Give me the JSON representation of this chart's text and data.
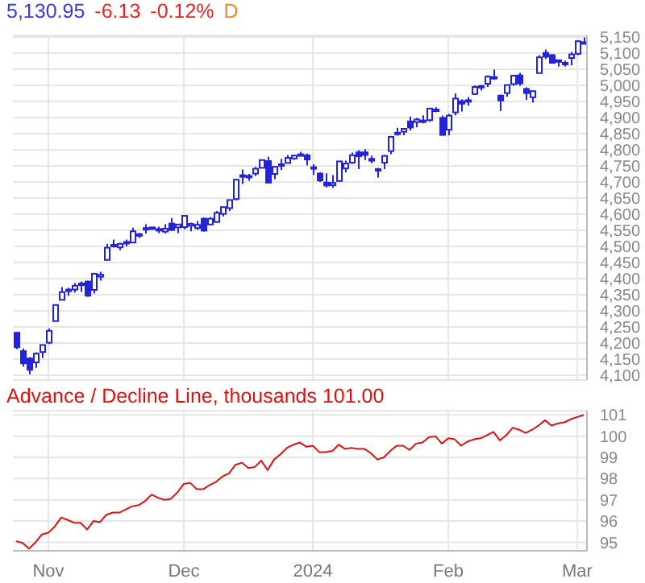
{
  "chart_data": [
    {
      "type": "candlestick",
      "title": "5,130.95 -6.13 -0.12% D",
      "color": "#2323dc",
      "categories": [
        null,
        null,
        null,
        null,
        null,
        null,
        null,
        null,
        null,
        null,
        null,
        null,
        null,
        null,
        null,
        null,
        null,
        null,
        null,
        null,
        null,
        null,
        null,
        null,
        null,
        null,
        null,
        null,
        null,
        null,
        null,
        null,
        null,
        null,
        null,
        null,
        null,
        null,
        null,
        null,
        null,
        null,
        null,
        null,
        null,
        null,
        null,
        null,
        null,
        null,
        null,
        null,
        null,
        null,
        null,
        null,
        null,
        null,
        null,
        null,
        null,
        null,
        null,
        null,
        null,
        null,
        null,
        null,
        null,
        null,
        null,
        null,
        null,
        null,
        null,
        null,
        null,
        null,
        null,
        null,
        null,
        null,
        null,
        null,
        null,
        null,
        null,
        null,
        null
      ],
      "ohlc": [
        [
          4232,
          4233,
          4181,
          4187
        ],
        [
          4175,
          4183,
          4127,
          4137
        ],
        [
          4152,
          4156,
          4103,
          4117
        ],
        [
          4140,
          4171,
          4123,
          4167
        ],
        [
          4172,
          4195,
          4154,
          4194
        ],
        [
          4201,
          4245,
          4197,
          4238
        ],
        [
          4268,
          4319,
          4268,
          4318
        ],
        [
          4334,
          4374,
          4334,
          4358
        ],
        [
          4365,
          4372,
          4347,
          4366
        ],
        [
          4366,
          4386,
          4357,
          4378
        ],
        [
          4385,
          4391,
          4359,
          4383
        ],
        [
          4391,
          4393,
          4344,
          4347
        ],
        [
          4365,
          4418,
          4354,
          4415
        ],
        [
          4406,
          4421,
          4394,
          4412
        ],
        [
          4458,
          4508,
          4458,
          4496
        ],
        [
          4505,
          4521,
          4496,
          4503
        ],
        [
          4497,
          4511,
          4488,
          4508
        ],
        [
          4510,
          4521,
          4500,
          4514
        ],
        [
          4512,
          4558,
          4511,
          4547
        ],
        [
          4538,
          4542,
          4526,
          4538
        ],
        [
          4553,
          4569,
          4540,
          4557
        ],
        [
          4555,
          4560,
          4553,
          4559
        ],
        [
          4554,
          4561,
          4541,
          4550
        ],
        [
          4546,
          4569,
          4540,
          4555
        ],
        [
          4571,
          4588,
          4548,
          4551
        ],
        [
          4559,
          4570,
          4541,
          4568
        ],
        [
          4560,
          4597,
          4553,
          4595
        ],
        [
          4564,
          4574,
          4547,
          4570
        ],
        [
          4557,
          4579,
          4551,
          4567
        ],
        [
          4586,
          4590,
          4546,
          4549
        ],
        [
          4568,
          4591,
          4567,
          4586
        ],
        [
          4576,
          4610,
          4574,
          4604
        ],
        [
          4601,
          4623,
          4593,
          4622
        ],
        [
          4619,
          4644,
          4610,
          4644
        ],
        [
          4647,
          4709,
          4643,
          4707
        ],
        [
          4721,
          4739,
          4694,
          4720
        ],
        [
          4714,
          4725,
          4704,
          4719
        ],
        [
          4726,
          4747,
          4719,
          4741
        ],
        [
          4744,
          4768,
          4743,
          4768
        ],
        [
          4765,
          4778,
          4697,
          4698
        ],
        [
          4725,
          4749,
          4709,
          4747
        ],
        [
          4754,
          4772,
          4737,
          4755
        ],
        [
          4759,
          4784,
          4759,
          4775
        ],
        [
          4773,
          4785,
          4769,
          4782
        ],
        [
          4786,
          4794,
          4780,
          4783
        ],
        [
          4783,
          4788,
          4751,
          4770
        ],
        [
          4746,
          4755,
          4722,
          4743
        ],
        [
          4726,
          4730,
          4700,
          4705
        ],
        [
          4698,
          4727,
          4683,
          4689
        ],
        [
          4690,
          4721,
          4682,
          4697
        ],
        [
          4703,
          4764,
          4700,
          4764
        ],
        [
          4742,
          4766,
          4730,
          4757
        ],
        [
          4760,
          4791,
          4756,
          4783
        ],
        [
          4792,
          4799,
          4740,
          4780
        ],
        [
          4792,
          4802,
          4768,
          4784
        ],
        [
          4772,
          4782,
          4758,
          4766
        ],
        [
          4740,
          4744,
          4714,
          4739
        ],
        [
          4760,
          4784,
          4740,
          4781
        ],
        [
          4796,
          4843,
          4786,
          4840
        ],
        [
          4853,
          4868,
          4844,
          4850
        ],
        [
          4856,
          4866,
          4845,
          4865
        ],
        [
          4888,
          4903,
          4860,
          4869
        ],
        [
          4886,
          4899,
          4870,
          4894
        ],
        [
          4888,
          4907,
          4882,
          4891
        ],
        [
          4892,
          4929,
          4887,
          4928
        ],
        [
          4925,
          4932,
          4917,
          4925
        ],
        [
          4899,
          4906,
          4845,
          4846
        ],
        [
          4862,
          4911,
          4845,
          4906
        ],
        [
          4916,
          4975,
          4907,
          4959
        ],
        [
          4951,
          4957,
          4919,
          4943
        ],
        [
          4951,
          4964,
          4937,
          4954
        ],
        [
          4973,
          5000,
          4970,
          4995
        ],
        [
          4995,
          5001,
          4984,
          4998
        ],
        [
          5005,
          5031,
          4995,
          5027
        ],
        [
          5026,
          5049,
          5017,
          5022
        ],
        [
          4968,
          4971,
          4920,
          4953
        ],
        [
          4976,
          5002,
          4965,
          5001
        ],
        [
          5004,
          5033,
          4999,
          5030
        ],
        [
          5031,
          5039,
          4999,
          5006
        ],
        [
          4989,
          4994,
          4955,
          4976
        ],
        [
          4963,
          4984,
          4946,
          4982
        ],
        [
          5038,
          5094,
          5038,
          5087
        ],
        [
          5101,
          5111,
          5082,
          5089
        ],
        [
          5094,
          5097,
          5068,
          5070
        ],
        [
          5075,
          5080,
          5058,
          5078
        ],
        [
          5067,
          5077,
          5058,
          5070
        ],
        [
          5085,
          5104,
          5062,
          5096
        ],
        [
          5098,
          5140,
          5094,
          5137
        ],
        [
          5134,
          5149,
          5127,
          5131
        ]
      ],
      "ylim": [
        4085,
        5155
      ],
      "yticks": [
        {
          "value": 4100,
          "label": "4,100"
        },
        {
          "value": 4150,
          "label": "4,150"
        },
        {
          "value": 4200,
          "label": "4,200"
        },
        {
          "value": 4250,
          "label": "4,250"
        },
        {
          "value": 4300,
          "label": "4,300"
        },
        {
          "value": 4350,
          "label": "4,350"
        },
        {
          "value": 4400,
          "label": "4,400"
        },
        {
          "value": 4450,
          "label": "4,450"
        },
        {
          "value": 4500,
          "label": "4,500"
        },
        {
          "value": 4550,
          "label": "4,550"
        },
        {
          "value": 4600,
          "label": "4,600"
        },
        {
          "value": 4650,
          "label": "4,650"
        },
        {
          "value": 4700,
          "label": "4,700"
        },
        {
          "value": 4750,
          "label": "4,750"
        },
        {
          "value": 4800,
          "label": "4,800"
        },
        {
          "value": 4850,
          "label": "4,850"
        },
        {
          "value": 4900,
          "label": "4,900"
        },
        {
          "value": 4950,
          "label": "4,950"
        },
        {
          "value": 5000,
          "label": "5,000"
        },
        {
          "value": 5050,
          "label": "5,050"
        },
        {
          "value": 5100,
          "label": "5,100"
        },
        {
          "value": 5150,
          "label": "5,150"
        }
      ],
      "grid": true,
      "tick_labels": "y"
    },
    {
      "type": "line",
      "title": "Advance / Decline Line, thousands 101.00",
      "color": "#dd1111",
      "categories": [
        null,
        null,
        null,
        null,
        null,
        "Nov",
        null,
        null,
        null,
        null,
        null,
        null,
        null,
        null,
        null,
        null,
        null,
        null,
        null,
        null,
        null,
        null,
        null,
        null,
        null,
        null,
        "Dec",
        null,
        null,
        null,
        null,
        null,
        null,
        null,
        null,
        null,
        null,
        null,
        null,
        null,
        null,
        null,
        null,
        null,
        null,
        null,
        "2024",
        null,
        null,
        null,
        null,
        null,
        null,
        null,
        null,
        null,
        null,
        null,
        null,
        null,
        null,
        null,
        null,
        null,
        null,
        null,
        null,
        "Feb",
        null,
        null,
        null,
        null,
        null,
        null,
        null,
        null,
        null,
        null,
        null,
        null,
        null,
        null,
        null,
        null,
        null,
        null,
        null,
        "Mar",
        null
      ],
      "values": [
        95.05,
        94.97,
        94.7,
        95.0,
        95.37,
        95.45,
        95.75,
        96.17,
        96.05,
        95.92,
        95.92,
        95.6,
        96.0,
        95.95,
        96.3,
        96.4,
        96.4,
        96.55,
        96.7,
        96.75,
        96.95,
        97.25,
        97.1,
        97.0,
        97.05,
        97.35,
        97.75,
        97.8,
        97.5,
        97.5,
        97.7,
        97.85,
        98.1,
        98.25,
        98.65,
        98.75,
        98.5,
        98.55,
        98.85,
        98.4,
        98.9,
        99.15,
        99.45,
        99.6,
        99.7,
        99.5,
        99.55,
        99.25,
        99.25,
        99.3,
        99.6,
        99.4,
        99.45,
        99.4,
        99.4,
        99.2,
        98.9,
        99.0,
        99.3,
        99.55,
        99.55,
        99.35,
        99.65,
        99.7,
        99.95,
        100.0,
        99.65,
        99.9,
        99.85,
        99.55,
        99.75,
        99.85,
        99.9,
        100.05,
        100.2,
        99.8,
        100.05,
        100.4,
        100.3,
        100.15,
        100.3,
        100.5,
        100.75,
        100.5,
        100.6,
        100.65,
        100.8,
        100.9,
        101.0
      ],
      "ylim": [
        94.6,
        101.2
      ],
      "yticks": [
        95,
        96,
        97,
        98,
        99,
        100,
        101
      ],
      "grid": true,
      "marker": "none",
      "line_style": "solid"
    }
  ]
}
